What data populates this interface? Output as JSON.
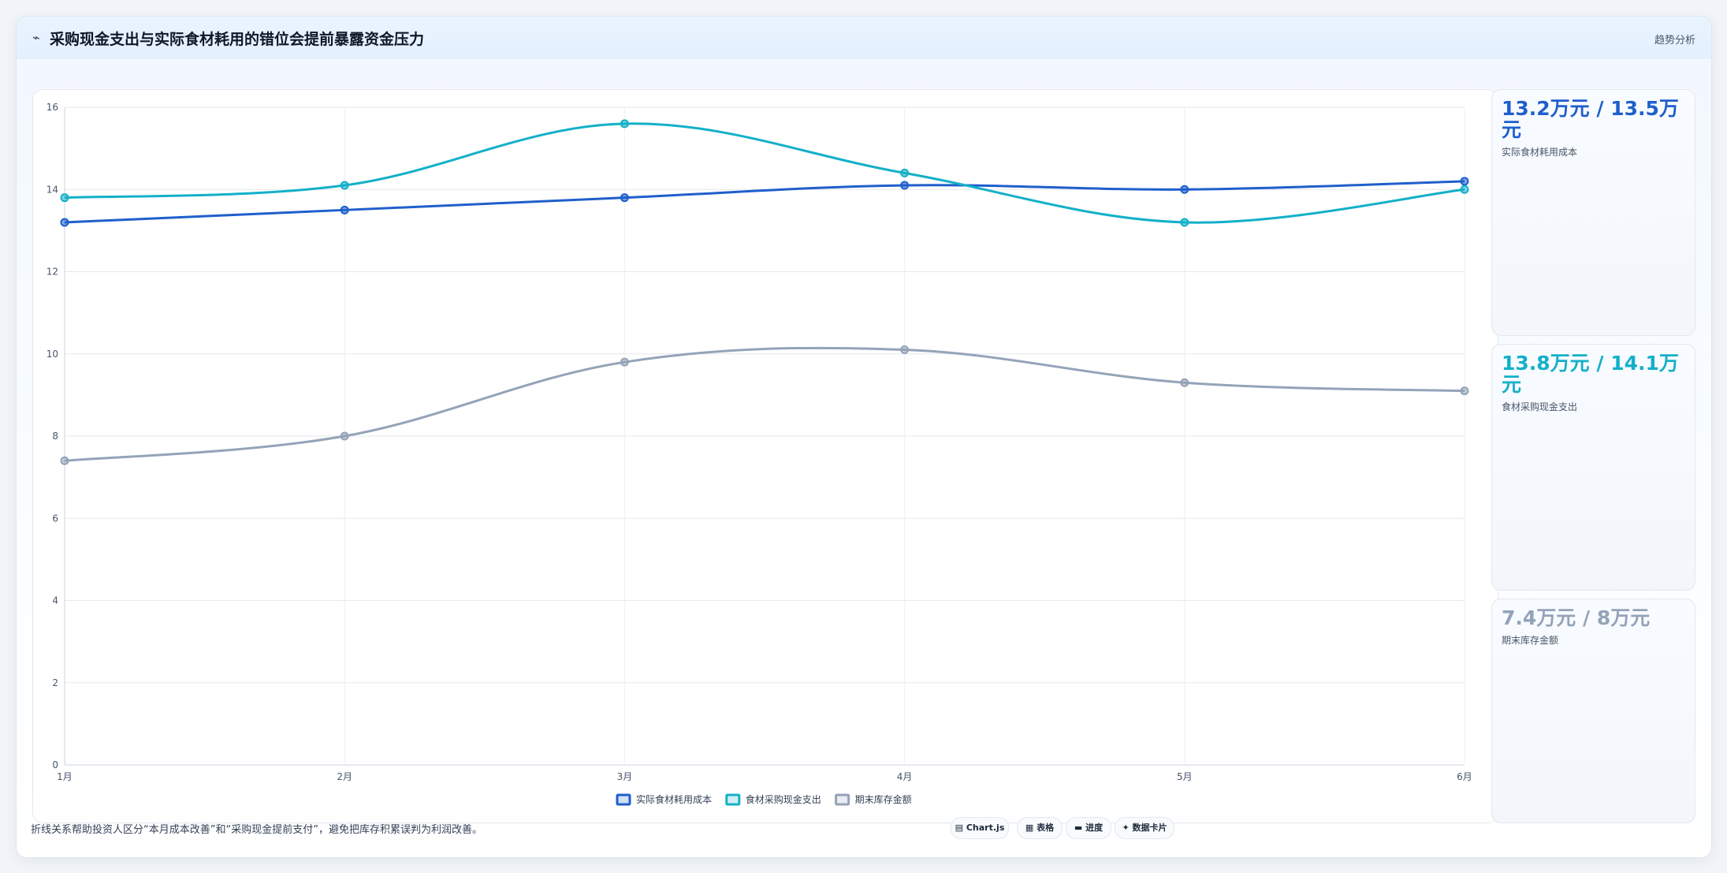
{
  "header": {
    "icon": "trend-line-icon",
    "title": "采购现金支出与实际食材耗用的错位会提前暴露资金压力",
    "tag": "趋势分析"
  },
  "colors": {
    "cost": "#1f5fcc",
    "purchase": "#13b0c8",
    "inventory": "#94a3b8"
  },
  "chart_data": {
    "type": "line",
    "categories": [
      "1月",
      "2月",
      "3月",
      "4月",
      "5月",
      "6月"
    ],
    "ylim": [
      0,
      16
    ],
    "yticks": [
      0,
      2,
      4,
      6,
      8,
      10,
      12,
      14,
      16
    ],
    "grid": true,
    "legend_position": "bottom",
    "series": [
      {
        "name": "实际食材耗用成本",
        "color": "#1f5fcc",
        "values": [
          13.2,
          13.5,
          13.8,
          14.1,
          14.0,
          14.2
        ]
      },
      {
        "name": "食材采购现金支出",
        "color": "#13b0c8",
        "values": [
          13.8,
          14.1,
          15.6,
          14.4,
          13.2,
          14.0
        ]
      },
      {
        "name": "期末库存金额",
        "color": "#94a3b8",
        "values": [
          7.4,
          8.0,
          9.8,
          10.1,
          9.3,
          9.1
        ]
      }
    ]
  },
  "kpis": [
    {
      "value": "13.2万元 / 13.5万元",
      "label": "实际食材耗用成本",
      "color": "#1f5fcc"
    },
    {
      "value": "13.8万元 / 14.1万元",
      "label": "食材采购现金支出",
      "color": "#13b0c8"
    },
    {
      "value": "7.4万元 / 8万元",
      "label": "期末库存金额",
      "color": "#94a3b8"
    }
  ],
  "footnote": "折线关系帮助投资人区分“本月成本改善”和“采购现金提前支付”，避免把库存积累误判为利润改善。",
  "pills": [
    {
      "icon": "chart-icon",
      "glyph": "▤",
      "label": "Chart.js"
    },
    {
      "icon": "table-icon",
      "glyph": "▦",
      "label": "表格"
    },
    {
      "icon": "progress-icon",
      "glyph": "▬",
      "label": "进度"
    },
    {
      "icon": "card-icon",
      "glyph": "✦",
      "label": "数据卡片"
    }
  ]
}
